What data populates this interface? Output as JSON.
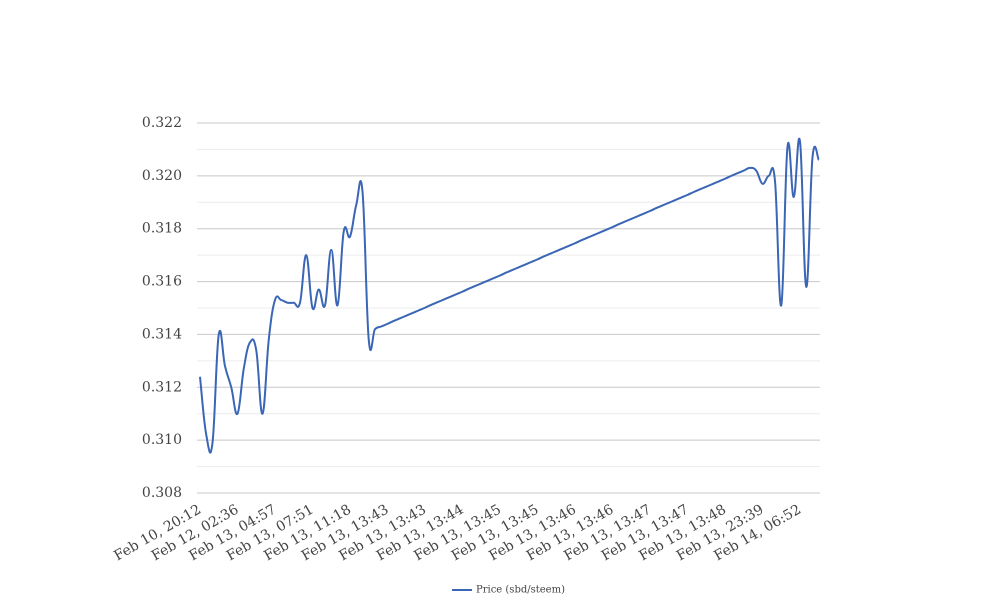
{
  "chart_data": {
    "type": "line",
    "categories": [
      "Feb 10, 20:12",
      null,
      null,
      null,
      null,
      null,
      "Feb 12, 02:36",
      null,
      null,
      null,
      null,
      null,
      "Feb 13, 04:57",
      null,
      null,
      null,
      null,
      null,
      "Feb 13, 07:51",
      null,
      null,
      null,
      null,
      null,
      "Feb 13, 11:18",
      null,
      null,
      null,
      null,
      null,
      "Feb 13, 13:43",
      null,
      null,
      null,
      null,
      null,
      "Feb 13, 13:43",
      null,
      null,
      null,
      null,
      null,
      "Feb 13, 13:44",
      null,
      null,
      null,
      null,
      null,
      "Feb 13, 13:45",
      null,
      null,
      null,
      null,
      null,
      "Feb 13, 13:45",
      null,
      null,
      null,
      null,
      null,
      "Feb 13, 13:46",
      null,
      null,
      null,
      null,
      null,
      "Feb 13, 13:46",
      null,
      null,
      null,
      null,
      null,
      "Feb 13, 13:47",
      null,
      null,
      null,
      null,
      null,
      "Feb 13, 13:47",
      null,
      null,
      null,
      null,
      null,
      "Feb 13, 13:48",
      null,
      null,
      null,
      null,
      null,
      "Feb 13, 23:39",
      null,
      null,
      null,
      null,
      null,
      "Feb 14, 06:52",
      null,
      null,
      null
    ],
    "series": [
      {
        "name": "Price (sbd/steem)",
        "color": "#3a66b5",
        "values": [
          0.3124,
          0.3102,
          0.3099,
          0.314,
          0.3128,
          0.312,
          0.311,
          0.3127,
          0.3137,
          0.3134,
          0.311,
          0.3138,
          0.3153,
          0.3153,
          0.3152,
          0.3152,
          0.3152,
          0.317,
          0.315,
          0.3157,
          0.3151,
          0.3172,
          0.3151,
          0.3179,
          0.3177,
          0.3189,
          0.3194,
          0.3138,
          0.3142,
          0.3143,
          0.3144,
          0.31451,
          0.31461,
          0.31471,
          0.31481,
          0.31491,
          0.31501,
          0.31512,
          0.31522,
          0.31532,
          0.31542,
          0.31552,
          0.31562,
          0.31573,
          0.31583,
          0.31593,
          0.31603,
          0.31613,
          0.31623,
          0.31634,
          0.31644,
          0.31654,
          0.31664,
          0.31674,
          0.31684,
          0.31695,
          0.31705,
          0.31715,
          0.31725,
          0.31735,
          0.31745,
          0.31756,
          0.31766,
          0.31776,
          0.31786,
          0.31796,
          0.31806,
          0.31817,
          0.31827,
          0.31837,
          0.31847,
          0.31857,
          0.31867,
          0.31878,
          0.31888,
          0.31898,
          0.31908,
          0.31918,
          0.31928,
          0.31939,
          0.31949,
          0.31959,
          0.31969,
          0.31979,
          0.31989,
          0.32,
          0.3201,
          0.3202,
          0.3203,
          0.3202,
          0.3197,
          0.32,
          0.3198,
          0.3151,
          0.3211,
          0.3192,
          0.3213,
          0.3158,
          0.3207,
          0.3206
        ]
      }
    ],
    "ylim": [
      0.308,
      0.322
    ],
    "yticks": [
      0.308,
      {
        "value": 0.31,
        "label": "0.310"
      },
      0.312,
      0.314,
      0.316,
      0.318,
      {
        "value": 0.32,
        "label": "0.320"
      },
      0.322
    ],
    "minor_yticks": [
      0.309,
      0.311,
      0.313,
      0.315,
      0.317,
      0.319,
      0.321
    ],
    "grid": true,
    "legend": "bottom"
  }
}
